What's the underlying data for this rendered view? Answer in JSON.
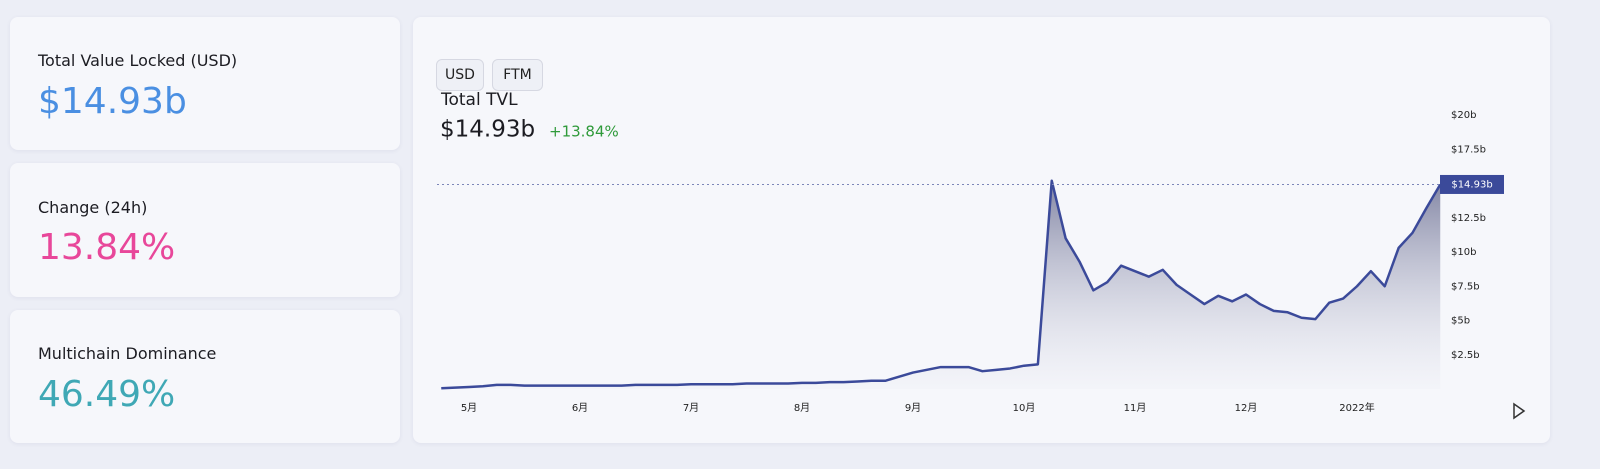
{
  "stats": [
    {
      "label": "Total Value Locked (USD)",
      "value": "$14.93b"
    },
    {
      "label": "Change (24h)",
      "value": "13.84%"
    },
    {
      "label": "Multichain Dominance",
      "value": "46.49%"
    }
  ],
  "toggle": [
    "USD",
    "FTM"
  ],
  "chart_data": {
    "type": "area",
    "title": "Total TVL",
    "headline": "$14.93b",
    "change": "+13.84%",
    "categories": [
      null,
      null,
      "5月",
      null,
      null,
      null,
      null,
      null,
      null,
      null,
      "6月",
      null,
      null,
      null,
      null,
      null,
      null,
      null,
      "7月",
      null,
      null,
      null,
      null,
      null,
      null,
      null,
      "8月",
      null,
      null,
      null,
      null,
      null,
      null,
      null,
      "9月",
      null,
      null,
      null,
      null,
      null,
      null,
      null,
      "10月",
      null,
      null,
      null,
      null,
      null,
      null,
      null,
      "11月",
      null,
      null,
      null,
      null,
      null,
      null,
      null,
      "12月",
      null,
      null,
      null,
      null,
      null,
      null,
      null,
      "2022年",
      null,
      null,
      null,
      null,
      null,
      null
    ],
    "values": [
      0.05,
      0.1,
      0.15,
      0.2,
      0.3,
      0.3,
      0.25,
      0.25,
      0.25,
      0.25,
      0.25,
      0.25,
      0.25,
      0.25,
      0.3,
      0.3,
      0.3,
      0.3,
      0.35,
      0.35,
      0.35,
      0.35,
      0.4,
      0.4,
      0.4,
      0.4,
      0.45,
      0.45,
      0.5,
      0.5,
      0.55,
      0.6,
      0.6,
      0.9,
      1.2,
      1.4,
      1.6,
      1.6,
      1.6,
      1.3,
      1.4,
      1.5,
      1.7,
      1.8,
      15.2,
      11.0,
      9.3,
      7.2,
      7.8,
      9.0,
      8.6,
      8.2,
      8.7,
      7.6,
      6.9,
      6.2,
      6.8,
      6.4,
      6.9,
      6.2,
      5.7,
      5.6,
      5.2,
      5.1,
      6.3,
      6.6,
      7.5,
      8.6,
      7.5,
      10.3,
      11.4,
      13.2,
      14.93
    ],
    "color": "#3b4a9a",
    "ylim": [
      0,
      20
    ],
    "yticks": [
      {
        "value": 2.5,
        "label": "$2.5b"
      },
      {
        "value": 5,
        "label": "$5b"
      },
      {
        "value": 7.5,
        "label": "$7.5b"
      },
      {
        "value": 10,
        "label": "$10b"
      },
      {
        "value": 12.5,
        "label": "$12.5b"
      },
      {
        "value": 17.5,
        "label": "$17.5b"
      },
      {
        "value": 20,
        "label": "$20b"
      }
    ],
    "grid": false,
    "reference_line": {
      "value": 14.93,
      "label": "$14.93b"
    }
  }
}
